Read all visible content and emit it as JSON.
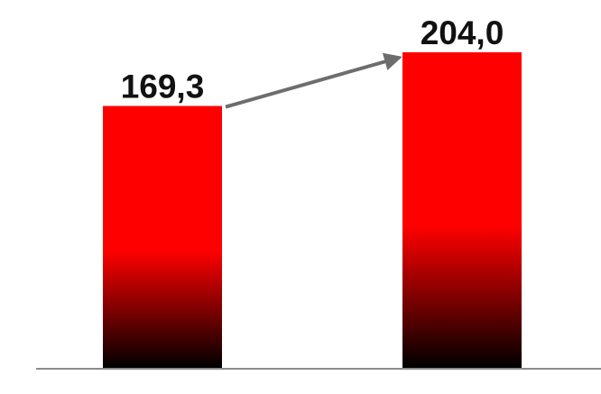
{
  "chart_data": {
    "type": "bar",
    "categories": [
      "",
      ""
    ],
    "values": [
      169.3,
      204.0
    ],
    "value_labels": [
      "169,3",
      "204,0"
    ],
    "ylim": [
      0,
      204.0
    ],
    "grid": false,
    "legend": "none",
    "has_trend_arrow": true
  },
  "colors": {
    "bar_top": "#ff0000",
    "bar_bottom": "#000000",
    "arrow": "#6d6d6d",
    "axis_line": "#8c8c8c",
    "label_text": "#111111"
  }
}
